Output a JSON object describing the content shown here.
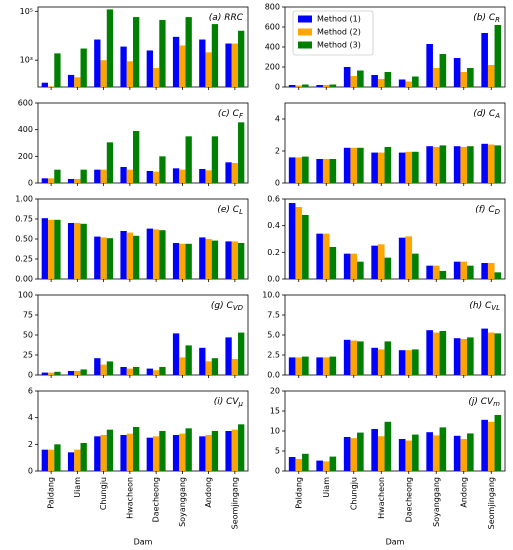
{
  "chart_data": [
    {
      "type": "bar",
      "title": "(a) RRC",
      "log": true,
      "ylim": [
        80,
        150000
      ],
      "yticks": [
        {
          "value": 1000,
          "label": "10³"
        },
        {
          "value": 100000,
          "label": "10⁵"
        }
      ],
      "series": [
        {
          "name": "Method (1)",
          "color": "#0000ff",
          "values": [
            120,
            250,
            7000,
            3600,
            2500,
            9000,
            7000,
            4800
          ]
        },
        {
          "name": "Method (2)",
          "color": "#ffa500",
          "values": [
            85,
            200,
            1000,
            900,
            480,
            4000,
            2100,
            4800
          ]
        },
        {
          "name": "Method (3)",
          "color": "#008000",
          "values": [
            1900,
            3000,
            120000,
            58000,
            44000,
            58000,
            30000,
            16000
          ]
        }
      ]
    },
    {
      "type": "bar",
      "title": "(b) C",
      "title_sub": "R",
      "ylim": [
        0,
        800
      ],
      "yticks": [
        0,
        200,
        400,
        600,
        800
      ],
      "legend": "upper left",
      "series": [
        {
          "name": "Method (1)",
          "color": "#0000ff",
          "values": [
            20,
            20,
            200,
            120,
            75,
            430,
            290,
            540
          ]
        },
        {
          "name": "Method (2)",
          "color": "#ffa500",
          "values": [
            15,
            20,
            110,
            80,
            55,
            190,
            150,
            220
          ]
        },
        {
          "name": "Method (3)",
          "color": "#008000",
          "values": [
            25,
            25,
            165,
            150,
            105,
            330,
            190,
            620
          ]
        }
      ]
    },
    {
      "type": "bar",
      "title": "(c) C",
      "title_sub": "F",
      "ylim": [
        0,
        600
      ],
      "yticks": [
        0,
        200,
        400,
        600
      ],
      "series": [
        {
          "name": "Method (1)",
          "color": "#0000ff",
          "values": [
            35,
            30,
            100,
            120,
            90,
            110,
            105,
            155
          ]
        },
        {
          "name": "Method (2)",
          "color": "#ffa500",
          "values": [
            35,
            30,
            100,
            100,
            85,
            100,
            95,
            150
          ]
        },
        {
          "name": "Method (3)",
          "color": "#008000",
          "values": [
            100,
            100,
            305,
            390,
            200,
            350,
            350,
            455
          ]
        }
      ]
    },
    {
      "type": "bar",
      "title": "(d) C",
      "title_sub": "A",
      "ylim": [
        0,
        5
      ],
      "yticks": [
        0,
        2,
        4
      ],
      "series": [
        {
          "name": "Method (1)",
          "color": "#0000ff",
          "values": [
            1.6,
            1.5,
            2.2,
            1.9,
            1.9,
            2.3,
            2.3,
            2.45
          ]
        },
        {
          "name": "Method (2)",
          "color": "#ffa500",
          "values": [
            1.6,
            1.5,
            2.2,
            1.9,
            1.95,
            2.25,
            2.25,
            2.4
          ]
        },
        {
          "name": "Method (3)",
          "color": "#008000",
          "values": [
            1.65,
            1.5,
            2.2,
            2.25,
            1.95,
            2.35,
            2.3,
            2.35
          ]
        }
      ]
    },
    {
      "type": "bar",
      "title": "(e) C",
      "title_sub": "L",
      "ylim": [
        0,
        1
      ],
      "yticks": [
        {
          "value": 0,
          "label": "0.00"
        },
        {
          "value": 0.25,
          "label": "0.25"
        },
        {
          "value": 0.5,
          "label": "0.50"
        },
        {
          "value": 0.75,
          "label": "0.75"
        },
        {
          "value": 1,
          "label": "1.00"
        }
      ],
      "series": [
        {
          "name": "Method (1)",
          "color": "#0000ff",
          "values": [
            0.76,
            0.7,
            0.53,
            0.6,
            0.63,
            0.45,
            0.52,
            0.47
          ]
        },
        {
          "name": "Method (2)",
          "color": "#ffa500",
          "values": [
            0.74,
            0.7,
            0.52,
            0.58,
            0.62,
            0.44,
            0.5,
            0.47
          ]
        },
        {
          "name": "Method (3)",
          "color": "#008000",
          "values": [
            0.74,
            0.69,
            0.51,
            0.54,
            0.61,
            0.44,
            0.48,
            0.45
          ]
        }
      ]
    },
    {
      "type": "bar",
      "title": "(f) C",
      "title_sub": "D",
      "ylim": [
        0,
        0.6
      ],
      "yticks": [
        {
          "value": 0,
          "label": "0.0"
        },
        0.2,
        0.4,
        0.6
      ],
      "series": [
        {
          "name": "Method (1)",
          "color": "#0000ff",
          "values": [
            0.57,
            0.34,
            0.19,
            0.25,
            0.31,
            0.1,
            0.13,
            0.12
          ]
        },
        {
          "name": "Method (2)",
          "color": "#ffa500",
          "values": [
            0.54,
            0.34,
            0.19,
            0.26,
            0.32,
            0.1,
            0.13,
            0.12
          ]
        },
        {
          "name": "Method (3)",
          "color": "#008000",
          "values": [
            0.48,
            0.24,
            0.13,
            0.16,
            0.19,
            0.06,
            0.1,
            0.05
          ]
        }
      ]
    },
    {
      "type": "bar",
      "title": "(g) C",
      "title_sub": "VD",
      "ylim": [
        0,
        100
      ],
      "yticks": [
        0,
        25,
        50,
        75,
        100
      ],
      "series": [
        {
          "name": "Method (1)",
          "color": "#0000ff",
          "values": [
            3,
            5,
            21,
            10,
            8,
            52,
            34,
            47
          ]
        },
        {
          "name": "Method (2)",
          "color": "#ffa500",
          "values": [
            3,
            5,
            13,
            8,
            6,
            22,
            17,
            20
          ]
        },
        {
          "name": "Method (3)",
          "color": "#008000",
          "values": [
            4,
            7,
            17,
            10,
            10,
            37,
            21,
            53
          ]
        }
      ]
    },
    {
      "type": "bar",
      "title": "(h) C",
      "title_sub": "VL",
      "ylim": [
        0,
        10
      ],
      "yticks": [
        {
          "value": 0,
          "label": "0.0"
        },
        2.5,
        {
          "value": 5,
          "label": "5.0"
        },
        7.5,
        {
          "value": 10,
          "label": "10.0"
        }
      ],
      "series": [
        {
          "name": "Method (1)",
          "color": "#0000ff",
          "values": [
            2.2,
            2.2,
            4.4,
            3.4,
            3.1,
            5.6,
            4.6,
            5.8
          ]
        },
        {
          "name": "Method (2)",
          "color": "#ffa500",
          "values": [
            2.2,
            2.2,
            4.3,
            3.2,
            3.1,
            5.3,
            4.5,
            5.3
          ]
        },
        {
          "name": "Method (3)",
          "color": "#008000",
          "values": [
            2.3,
            2.3,
            4.2,
            4.2,
            3.2,
            5.5,
            4.7,
            5.2
          ]
        }
      ]
    },
    {
      "type": "bar",
      "title": "(i) CV",
      "title_sub": "μ",
      "ylim": [
        0,
        6
      ],
      "yticks": [
        0,
        2,
        4,
        6
      ],
      "xlabel": "Dam",
      "categories": [
        "Paldang",
        "Uiam",
        "Chungju",
        "Hwacheon",
        "Daecheong",
        "Soyanggang",
        "Andong",
        "Seomjingang"
      ],
      "series": [
        {
          "name": "Method (1)",
          "color": "#0000ff",
          "values": [
            1.6,
            1.4,
            2.6,
            2.7,
            2.5,
            2.7,
            2.6,
            3.0
          ]
        },
        {
          "name": "Method (2)",
          "color": "#ffa500",
          "values": [
            1.6,
            1.6,
            2.7,
            2.8,
            2.6,
            2.8,
            2.7,
            3.1
          ]
        },
        {
          "name": "Method (3)",
          "color": "#008000",
          "values": [
            2.0,
            2.1,
            3.1,
            3.3,
            3.0,
            3.2,
            3.0,
            3.5
          ]
        }
      ]
    },
    {
      "type": "bar",
      "title": "(j) CV",
      "title_sub": "m",
      "ylim": [
        0,
        20
      ],
      "yticks": [
        0,
        5,
        10,
        15,
        20
      ],
      "xlabel": "Dam",
      "categories": [
        "Paldang",
        "Uiam",
        "Chungju",
        "Hwacheon",
        "Daecheong",
        "Soyanggang",
        "Andong",
        "Seomjingang"
      ],
      "series": [
        {
          "name": "Method (1)",
          "color": "#0000ff",
          "values": [
            3.5,
            2.6,
            8.5,
            10.5,
            8.0,
            9.7,
            8.8,
            12.8
          ]
        },
        {
          "name": "Method (2)",
          "color": "#ffa500",
          "values": [
            3.0,
            2.4,
            8.2,
            8.7,
            7.6,
            8.9,
            8.0,
            12.3
          ]
        },
        {
          "name": "Method (3)",
          "color": "#008000",
          "values": [
            4.3,
            3.6,
            9.6,
            12.3,
            9.1,
            10.9,
            9.4,
            14.0
          ]
        }
      ]
    }
  ]
}
